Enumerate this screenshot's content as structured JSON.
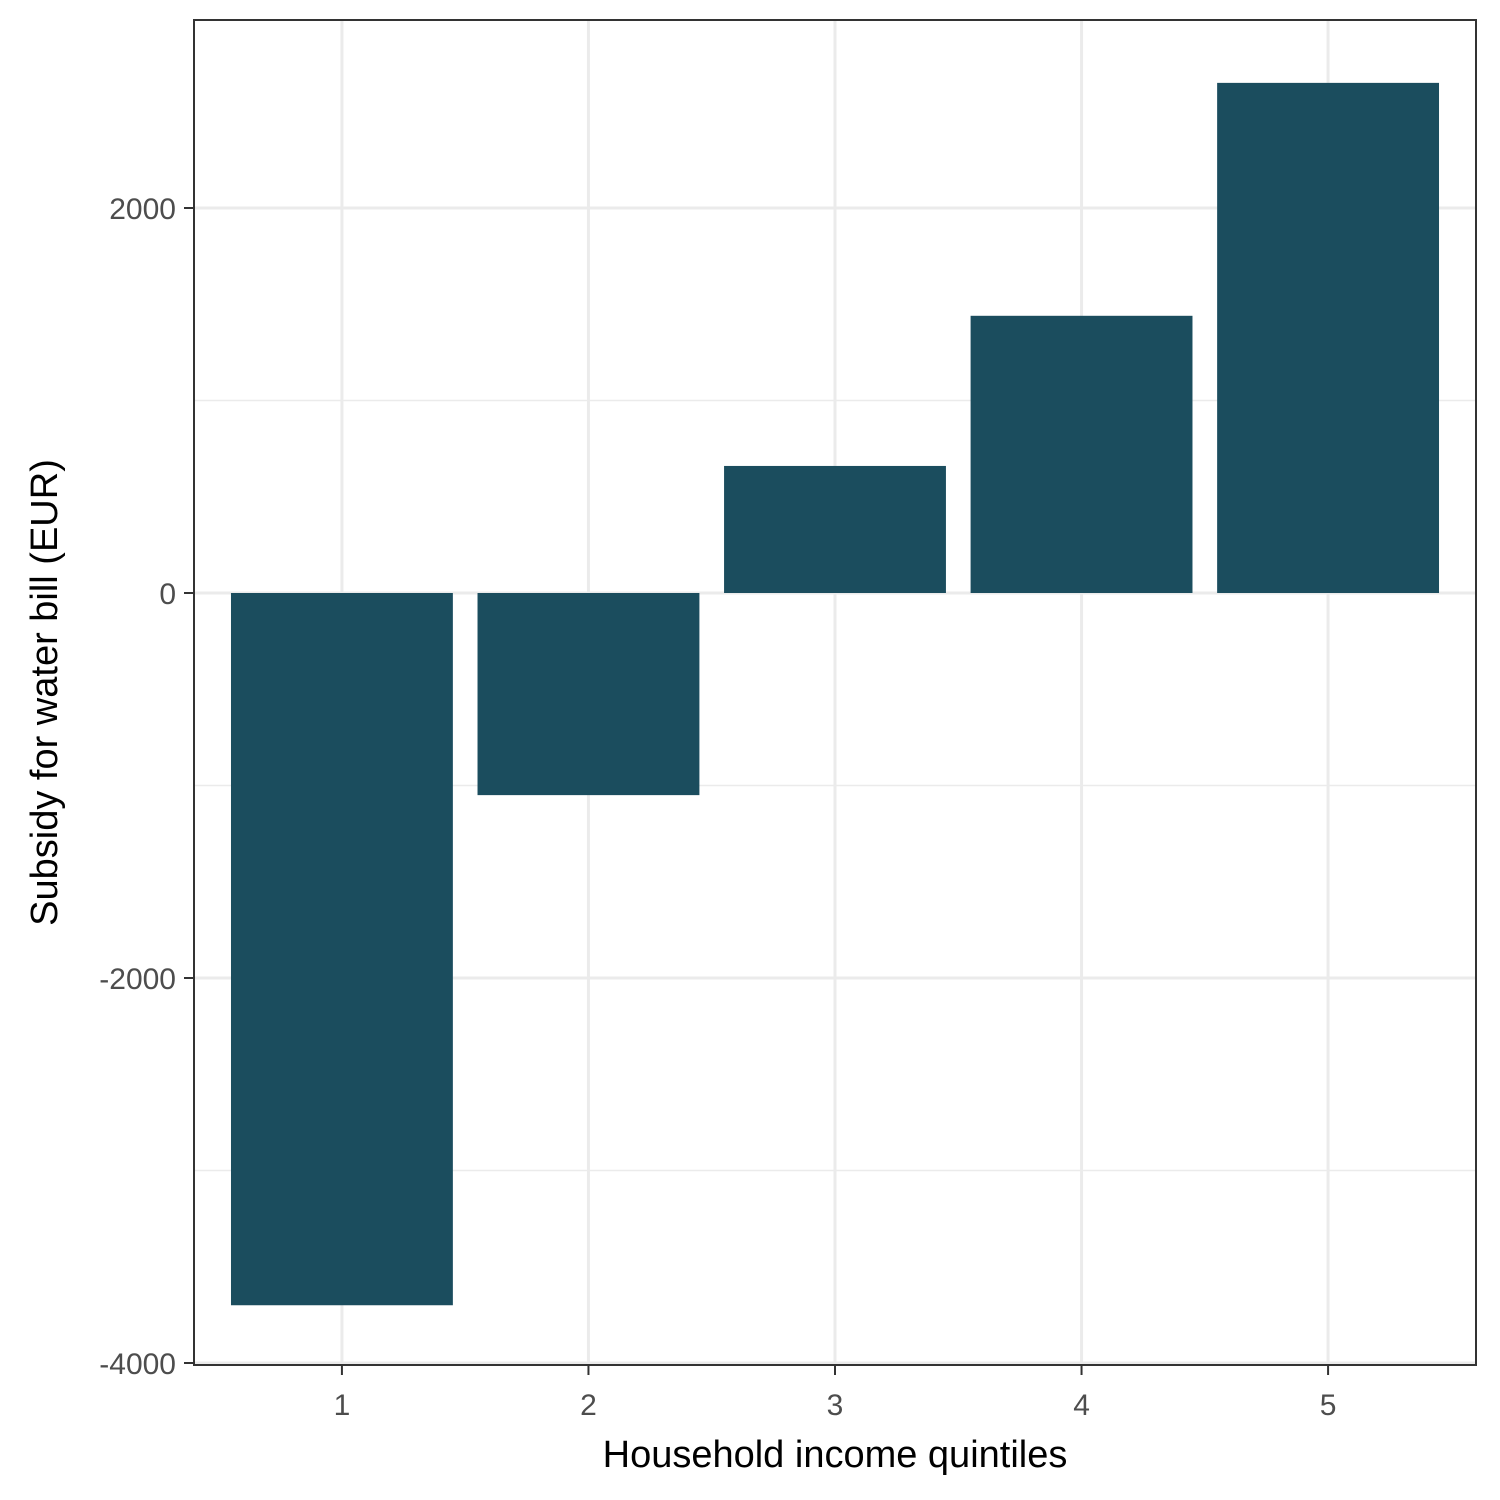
{
  "chart_data": {
    "type": "bar",
    "categories": [
      "1",
      "2",
      "3",
      "4",
      "5"
    ],
    "values": [
      -3700,
      -1050,
      660,
      1440,
      2650
    ],
    "xlabel": "Household income quintiles",
    "ylabel": "Subsidy for water bill (EUR)",
    "ylim": [
      -4000,
      2800
    ],
    "yticks": [
      -4000,
      -2000,
      0,
      2000
    ],
    "yticks_labels": [
      "-4000",
      "-2000",
      "0",
      "2000"
    ],
    "grid": true,
    "bar_color": "#1b4d5e",
    "grid_color": "#ebebeb",
    "panel_border_color": "#333333"
  }
}
